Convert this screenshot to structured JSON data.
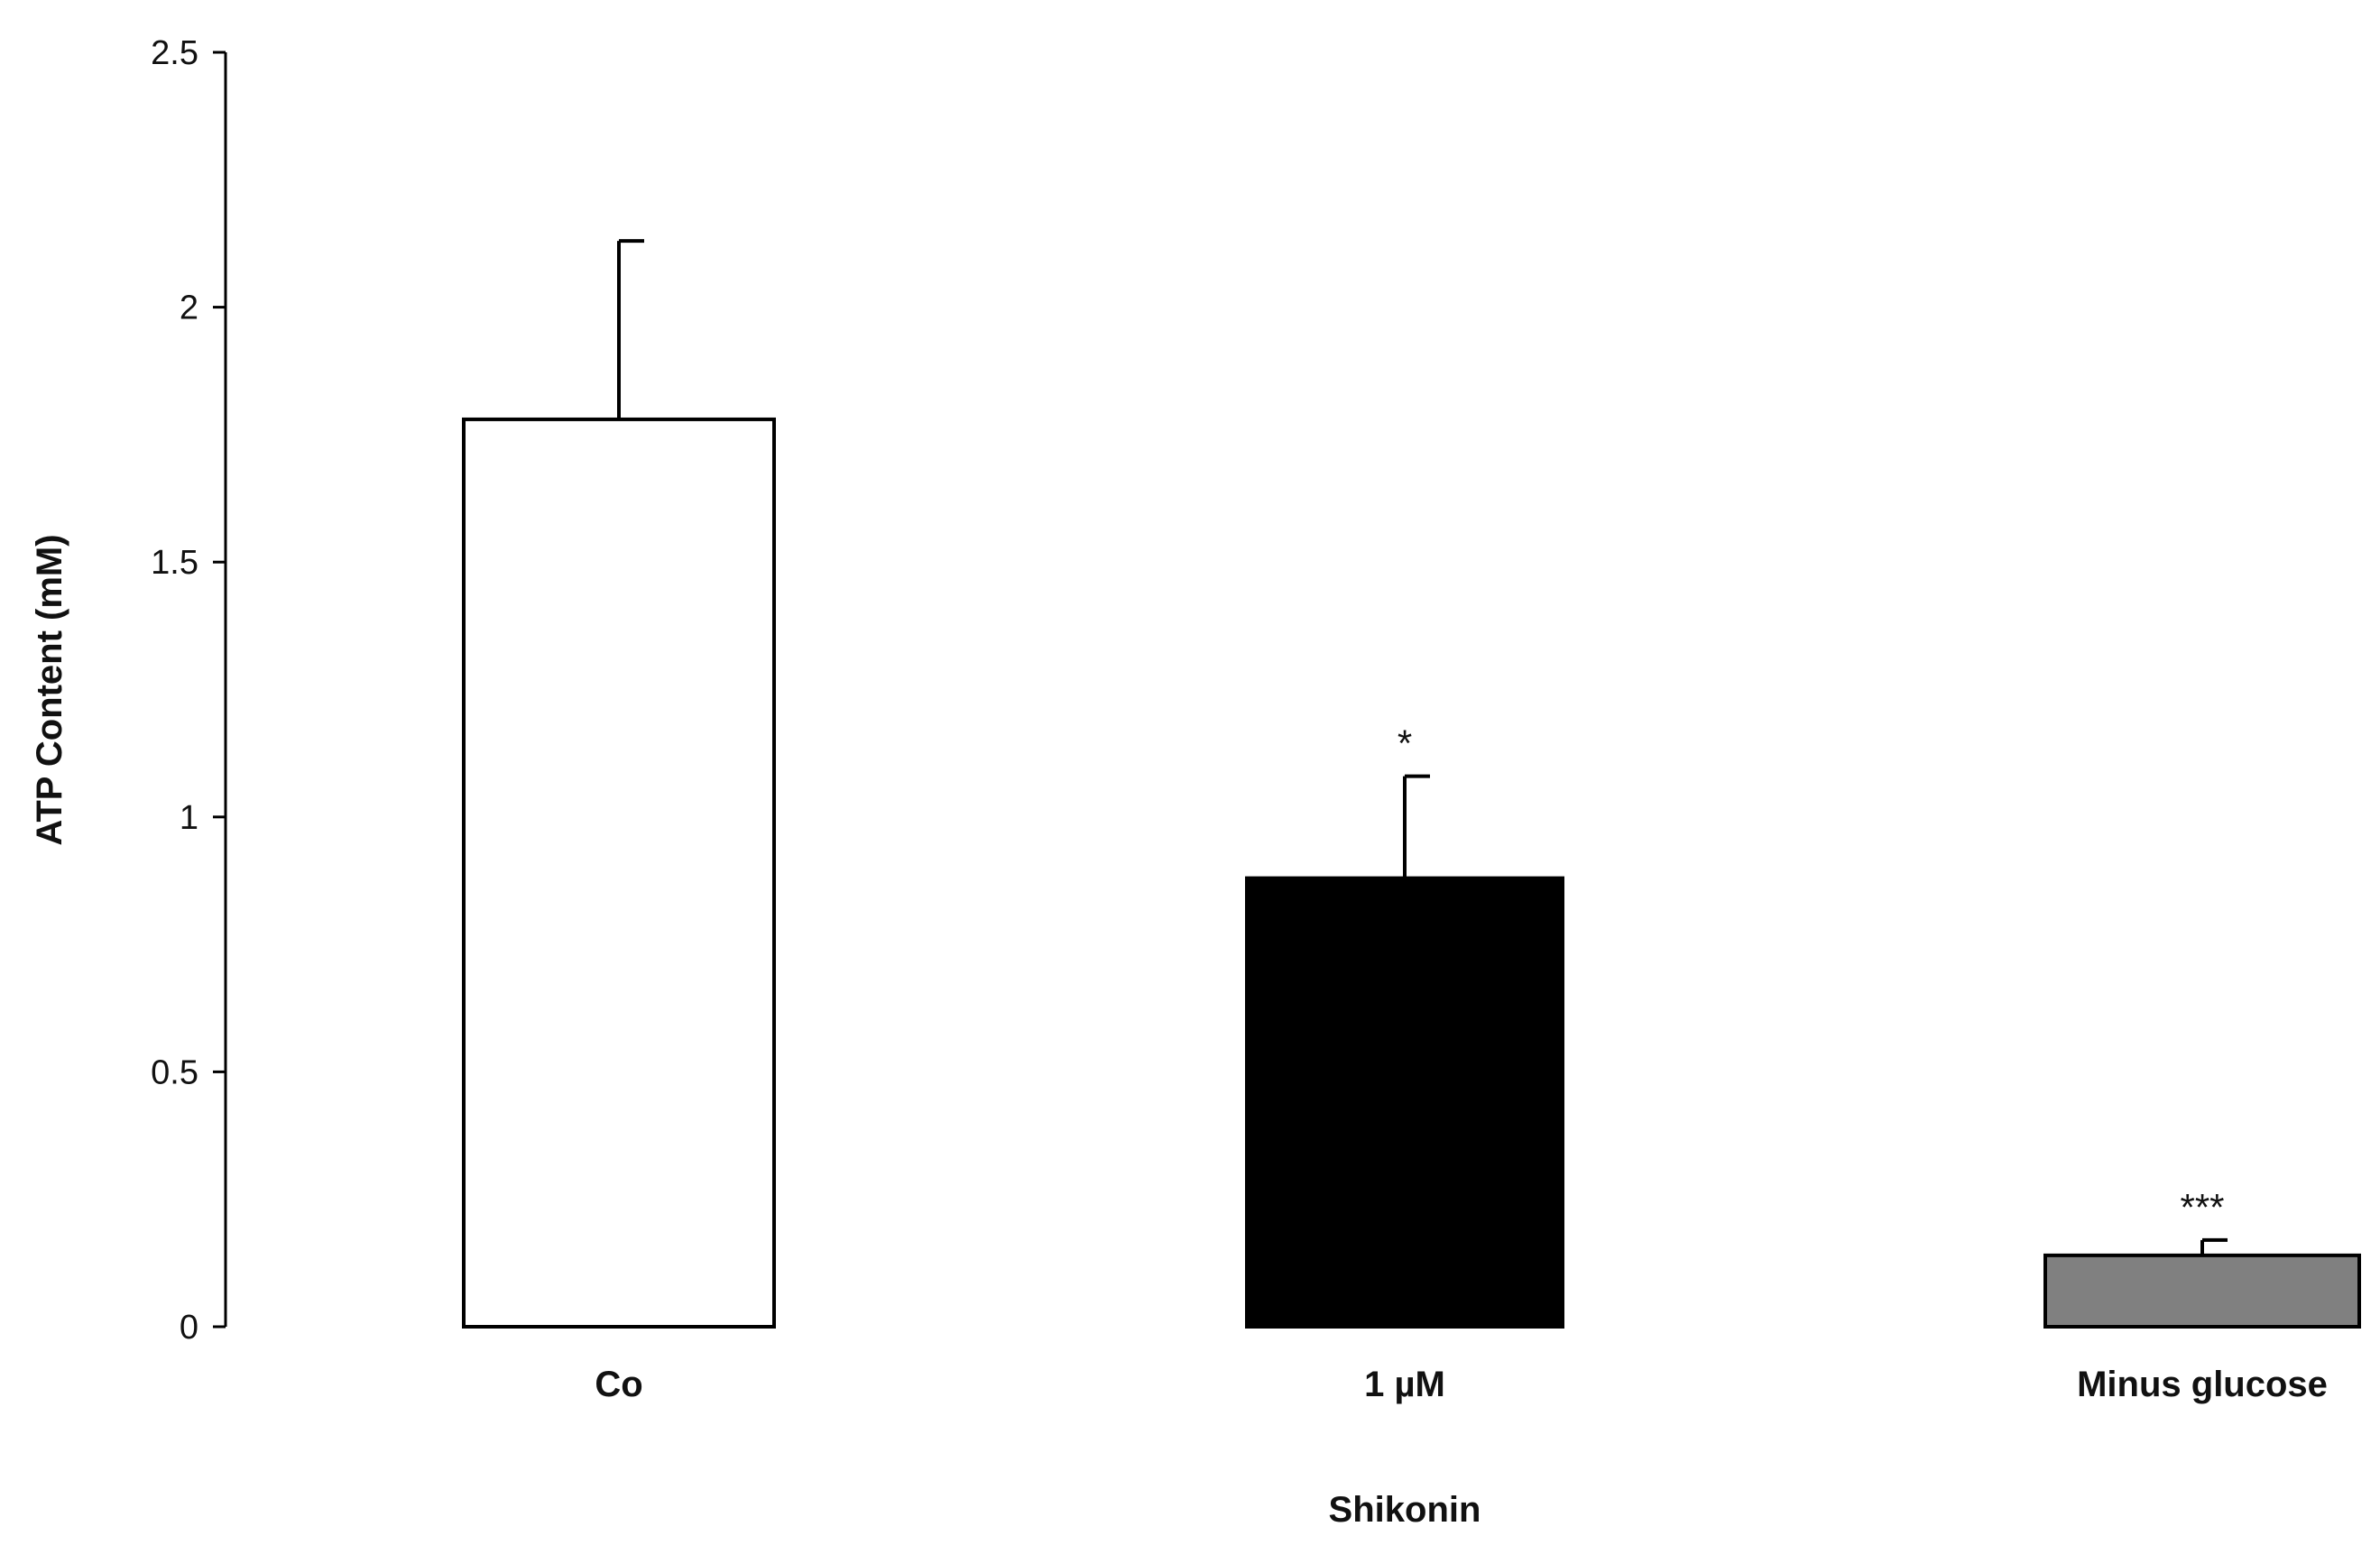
{
  "chart_data": {
    "type": "bar",
    "title": "",
    "xlabel": "Shikonin",
    "ylabel": "ATP Content (mM)",
    "ylim": [
      0,
      2.5
    ],
    "yticks": [
      "0",
      "0.5",
      "1",
      "1.5",
      "2",
      "2.5"
    ],
    "categories": [
      "Co",
      "1 µM",
      "Minus glucose"
    ],
    "values": [
      1.78,
      0.88,
      0.14
    ],
    "errors": [
      0.35,
      0.2,
      0.03
    ],
    "significance": [
      "",
      "*",
      "***"
    ],
    "bar_colors": [
      "#ffffff",
      "#000000",
      "#808080"
    ],
    "grid": false,
    "legend": "none"
  }
}
